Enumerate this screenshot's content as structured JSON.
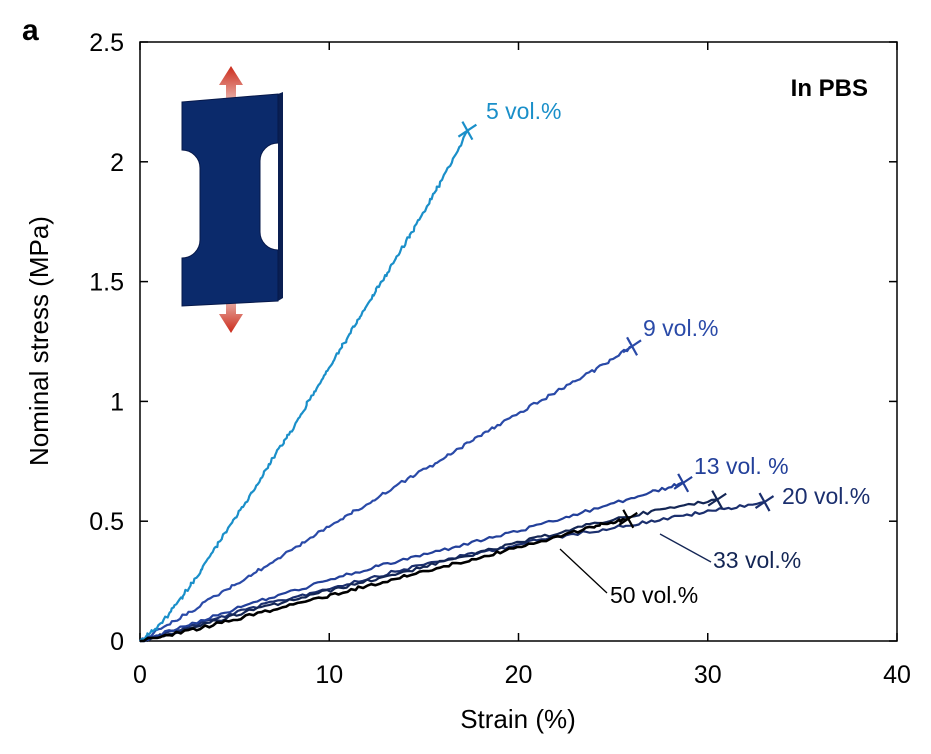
{
  "panel_label": "a",
  "chart_data": {
    "type": "line",
    "title": "",
    "xlabel": "Strain (%)",
    "ylabel": "Nominal stress (MPa)",
    "xlim": [
      0,
      40
    ],
    "ylim": [
      0,
      2.5
    ],
    "xticks": [
      "0",
      "10",
      "20",
      "30",
      "40"
    ],
    "yticks": [
      "0",
      "0.5",
      "1",
      "1.5",
      "2",
      "2.5"
    ],
    "annotation": "In PBS",
    "grid": false,
    "series": [
      {
        "name": "5 vol.%",
        "color": "#1a8fc9",
        "break": [
          17.3,
          2.13
        ],
        "x": [
          0,
          1,
          2,
          3,
          4,
          5,
          6,
          7,
          8,
          9,
          10,
          11,
          12,
          13,
          14,
          15,
          16,
          17.3
        ],
        "y": [
          0,
          0.06,
          0.16,
          0.27,
          0.39,
          0.51,
          0.63,
          0.76,
          0.88,
          1.01,
          1.14,
          1.27,
          1.4,
          1.53,
          1.66,
          1.79,
          1.93,
          2.13
        ]
      },
      {
        "name": "9 vol.%",
        "color": "#2a4aa8",
        "break": [
          26.0,
          1.23
        ],
        "x": [
          0,
          2,
          4,
          6,
          8,
          10,
          12,
          14,
          16,
          18,
          20,
          22,
          24,
          26.0
        ],
        "y": [
          0,
          0.09,
          0.19,
          0.28,
          0.38,
          0.48,
          0.57,
          0.67,
          0.76,
          0.86,
          0.95,
          1.04,
          1.13,
          1.23
        ]
      },
      {
        "name": "13 vol. %",
        "color": "#23409a",
        "break": [
          28.7,
          0.66
        ],
        "x": [
          0,
          3,
          6,
          9,
          12,
          15,
          18,
          21,
          24,
          27,
          28.7
        ],
        "y": [
          0,
          0.08,
          0.16,
          0.23,
          0.3,
          0.36,
          0.42,
          0.48,
          0.55,
          0.62,
          0.66
        ]
      },
      {
        "name": "20 vol.%",
        "color": "#1b2f6e",
        "break": [
          33.0,
          0.58
        ],
        "x": [
          0,
          3,
          6,
          9,
          12,
          15,
          18,
          21,
          24,
          27,
          30,
          33.0
        ],
        "y": [
          0,
          0.07,
          0.14,
          0.2,
          0.26,
          0.32,
          0.37,
          0.42,
          0.46,
          0.5,
          0.54,
          0.58
        ]
      },
      {
        "name": "33 vol.%",
        "color": "#142655",
        "break": [
          30.5,
          0.59
        ],
        "x": [
          0,
          3,
          6,
          9,
          12,
          15,
          18,
          21,
          24,
          27,
          30.5
        ],
        "y": [
          0,
          0.06,
          0.13,
          0.19,
          0.25,
          0.31,
          0.37,
          0.43,
          0.49,
          0.54,
          0.59
        ]
      },
      {
        "name": "50 vol.%",
        "color": "#000000",
        "break": [
          25.8,
          0.51
        ],
        "x": [
          0,
          3,
          6,
          9,
          12,
          15,
          18,
          21,
          24,
          25.8
        ],
        "y": [
          0,
          0.05,
          0.11,
          0.17,
          0.23,
          0.29,
          0.35,
          0.41,
          0.48,
          0.51
        ]
      }
    ]
  }
}
